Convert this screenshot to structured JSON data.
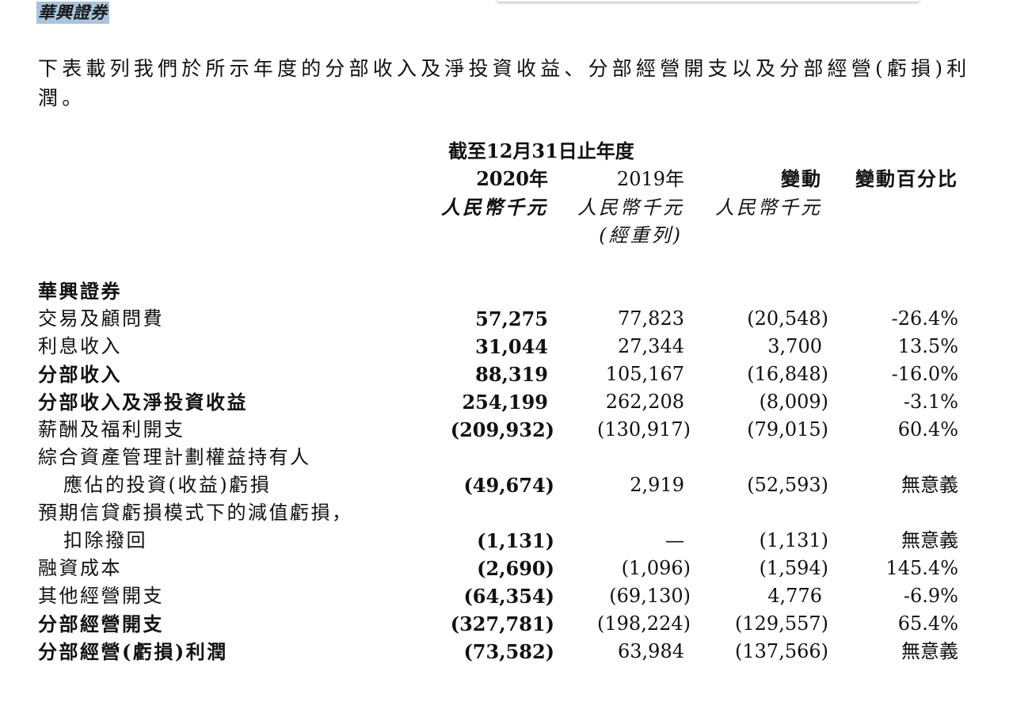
{
  "brand": "華興證券",
  "intro": "下表載列我們於所示年度的分部收入及淨投資收益、分部經營開支以及分部經營(虧損)利潤。",
  "header": {
    "period": "截至12月31日止年度",
    "col_2020": "2020年",
    "col_2019": "2019年",
    "col_change": "變動",
    "col_change_pct": "變動百分比",
    "unit": "人民幣千元",
    "restated": "(經重列)"
  },
  "section": "華興證券",
  "rows": [
    {
      "label": "交易及顧問費",
      "bold": false,
      "v2020": "57,275",
      "v2019": "77,823",
      "change": "(20,548)",
      "pct": "-26.4%"
    },
    {
      "label": "利息收入",
      "bold": false,
      "v2020": "31,044",
      "v2019": "27,344",
      "change": "3,700",
      "pct": "13.5%"
    },
    {
      "label": "分部收入",
      "bold": true,
      "v2020": "88,319",
      "v2019": "105,167",
      "change": "(16,848)",
      "pct": "-16.0%"
    },
    {
      "label": "分部收入及淨投資收益",
      "bold": true,
      "v2020": "254,199",
      "v2019": "262,208",
      "change": "(8,009)",
      "pct": "-3.1%"
    },
    {
      "label": "薪酬及福利開支",
      "bold": false,
      "v2020": "(209,932)",
      "v2019": "(130,917)",
      "change": "(79,015)",
      "pct": "60.4%"
    },
    {
      "label": "綜合資產管理計劃權益持有人",
      "bold": false
    },
    {
      "label": "應佔的投資(收益)虧損",
      "bold": false,
      "indent": true,
      "v2020": "(49,674)",
      "v2019": "2,919",
      "change": "(52,593)",
      "pct": "無意義"
    },
    {
      "label": "預期信貸虧損模式下的減值虧損，",
      "bold": false
    },
    {
      "label": "扣除撥回",
      "bold": false,
      "indent": true,
      "v2020": "(1,131)",
      "v2019": "—",
      "change": "(1,131)",
      "pct": "無意義"
    },
    {
      "label": "融資成本",
      "bold": false,
      "v2020": "(2,690)",
      "v2019": "(1,096)",
      "change": "(1,594)",
      "pct": "145.4%"
    },
    {
      "label": "其他經營開支",
      "bold": false,
      "v2020": "(64,354)",
      "v2019": "(69,130)",
      "change": "4,776",
      "pct": "-6.9%"
    },
    {
      "label": "分部經營開支",
      "bold": true,
      "v2020": "(327,781)",
      "v2019": "(198,224)",
      "change": "(129,557)",
      "pct": "65.4%"
    },
    {
      "label": "分部經營(虧損)利潤",
      "bold": true,
      "v2020": "(73,582)",
      "v2019": "63,984",
      "change": "(137,566)",
      "pct": "無意義"
    }
  ]
}
